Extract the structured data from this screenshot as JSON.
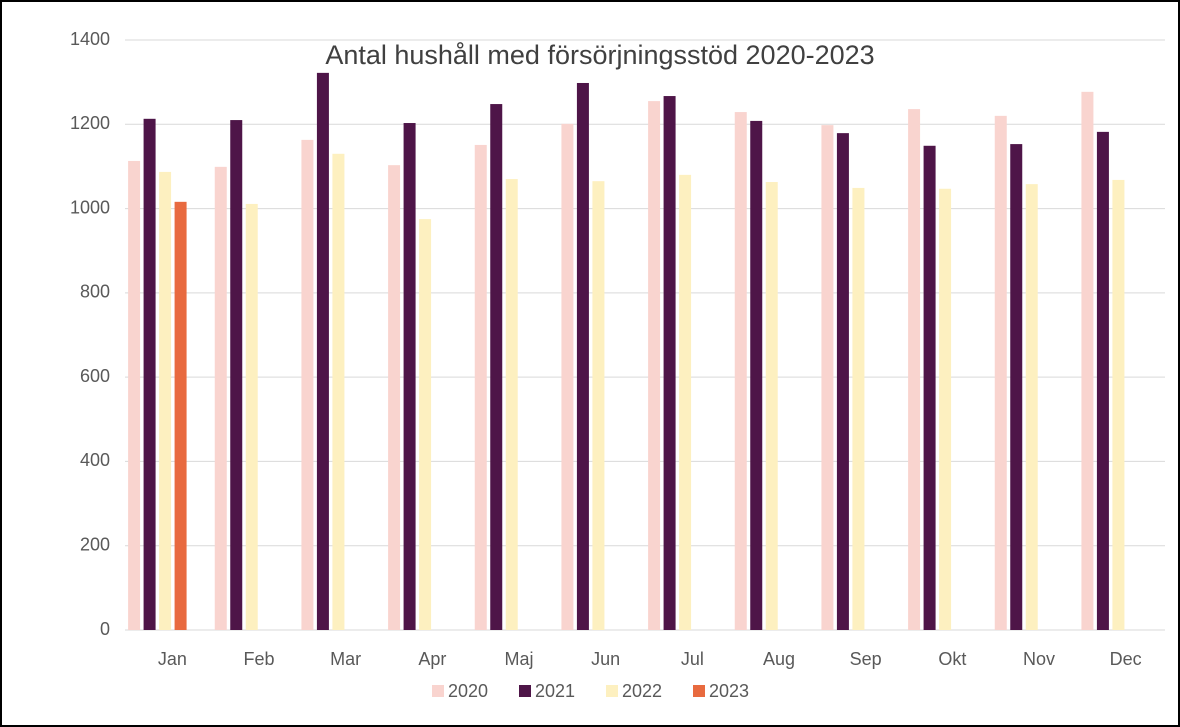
{
  "chart_data": {
    "type": "bar",
    "title": "Antal hushåll med försörjningsstöd 2020-2023",
    "categories": [
      "Jan",
      "Feb",
      "Mar",
      "Apr",
      "Maj",
      "Jun",
      "Jul",
      "Aug",
      "Sep",
      "Okt",
      "Nov",
      "Dec"
    ],
    "series": [
      {
        "name": "2020",
        "color": "#f9d4cf",
        "values": [
          1113,
          1099,
          1163,
          1103,
          1151,
          1201,
          1255,
          1229,
          1198,
          1236,
          1220,
          1277
        ]
      },
      {
        "name": "2021",
        "color": "#4e1548",
        "values": [
          1213,
          1210,
          1322,
          1203,
          1248,
          1298,
          1267,
          1208,
          1179,
          1149,
          1153,
          1182
        ]
      },
      {
        "name": "2022",
        "color": "#fdf0c0",
        "values": [
          1087,
          1011,
          1130,
          975,
          1070,
          1065,
          1080,
          1063,
          1049,
          1047,
          1058,
          1068
        ]
      },
      {
        "name": "2023",
        "color": "#e86a3f",
        "values": [
          1016,
          null,
          null,
          null,
          null,
          null,
          null,
          null,
          null,
          null,
          null,
          null
        ]
      }
    ],
    "ylim": [
      0,
      1400
    ],
    "yticks": [
      0,
      200,
      400,
      600,
      800,
      1000,
      1200,
      1400
    ],
    "grid": true,
    "legend": "bottom"
  }
}
